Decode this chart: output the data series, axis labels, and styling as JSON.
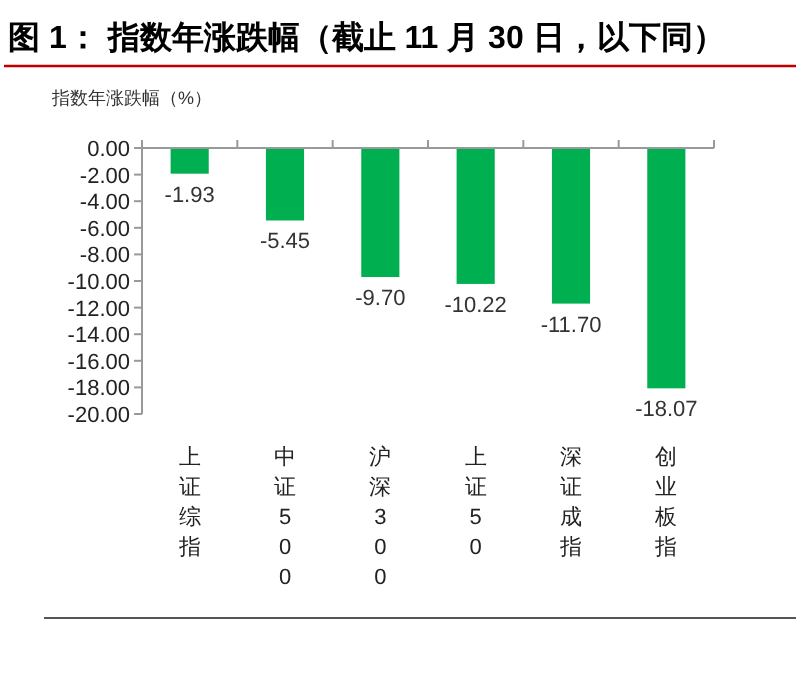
{
  "chart_data": {
    "type": "bar",
    "title": "图 1： 指数年涨跌幅（截止 11 月 30 日，以下同）",
    "ylabel": "指数年涨跌幅（%）",
    "categories": [
      "上证综指",
      "中证500",
      "沪深300",
      "上证50",
      "深证成指",
      "创业板指"
    ],
    "series": [
      {
        "color": "#00b050",
        "values": [
          -1.93,
          -5.45,
          -9.7,
          -10.22,
          -11.7,
          -18.07
        ],
        "value_labels": [
          "-1.93",
          "-5.45",
          "-9.70",
          "-10.22",
          "-11.70",
          "-18.07"
        ]
      }
    ],
    "ylim": [
      -20,
      0
    ],
    "yticks": [
      {
        "value": 0,
        "label": "0.00"
      },
      {
        "value": -2,
        "label": "-2.00"
      },
      {
        "value": -4,
        "label": "-4.00"
      },
      {
        "value": -6,
        "label": "-6.00"
      },
      {
        "value": -8,
        "label": "-8.00"
      },
      {
        "value": -10,
        "label": "-10.00"
      },
      {
        "value": -12,
        "label": "-12.00"
      },
      {
        "value": -14,
        "label": "-14.00"
      },
      {
        "value": -16,
        "label": "-16.00"
      },
      {
        "value": -18,
        "label": "-18.00"
      },
      {
        "value": -20,
        "label": "-20.00"
      }
    ],
    "stacked": false
  }
}
